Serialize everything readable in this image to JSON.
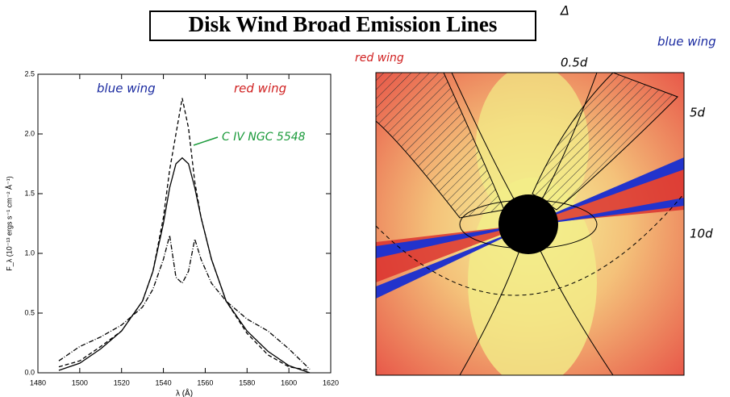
{
  "title": "Disk Wind Broad Emission Lines",
  "title_mark": "Δ",
  "chart_data": {
    "type": "line",
    "x_label": "λ (Å)",
    "y_label": "F_λ (10⁻¹³ ergs s⁻¹ cm⁻² Å⁻¹)",
    "annotations": [
      "blue wing",
      "red wing",
      "C IV NGC 5548"
    ],
    "x": [
      1490,
      1500,
      1510,
      1520,
      1530,
      1535,
      1540,
      1543,
      1546,
      1549,
      1552,
      1555,
      1558,
      1563,
      1570,
      1580,
      1590,
      1600,
      1610
    ],
    "series": [
      {
        "color": "#000000",
        "dash": "none",
        "values": [
          0.02,
          0.08,
          0.2,
          0.35,
          0.6,
          0.85,
          1.25,
          1.55,
          1.75,
          1.8,
          1.75,
          1.55,
          1.3,
          0.95,
          0.6,
          0.35,
          0.18,
          0.06,
          0.0
        ]
      },
      {
        "color": "#000000",
        "dash": "5,3",
        "values": [
          0.05,
          0.1,
          0.22,
          0.35,
          0.6,
          0.85,
          1.3,
          1.7,
          2.0,
          2.3,
          2.05,
          1.6,
          1.3,
          0.95,
          0.6,
          0.33,
          0.15,
          0.05,
          0.02
        ]
      },
      {
        "color": "#000000",
        "dash": "6,2,1,2",
        "values": [
          0.1,
          0.22,
          0.3,
          0.4,
          0.55,
          0.7,
          0.95,
          1.15,
          0.8,
          0.75,
          0.85,
          1.12,
          0.95,
          0.75,
          0.6,
          0.45,
          0.35,
          0.2,
          0.03
        ]
      }
    ],
    "xlim": [
      1480,
      1620
    ],
    "xticks": [
      1480,
      1500,
      1520,
      1540,
      1560,
      1580,
      1600,
      1620
    ],
    "ylim": [
      0,
      2.5
    ],
    "yticks": [
      {
        "value": 0,
        "label": "0.0"
      },
      {
        "value": 0.5,
        "label": "0.5"
      },
      {
        "value": 1,
        "label": "1.0"
      },
      {
        "value": 1.5,
        "label": "1.5"
      },
      {
        "value": 2,
        "label": "2.0"
      },
      {
        "value": 2.5,
        "label": "2.5"
      }
    ]
  },
  "image": {
    "labels": [
      "red wing",
      "blue wing",
      "0.5d",
      "5d",
      "10d"
    ]
  }
}
